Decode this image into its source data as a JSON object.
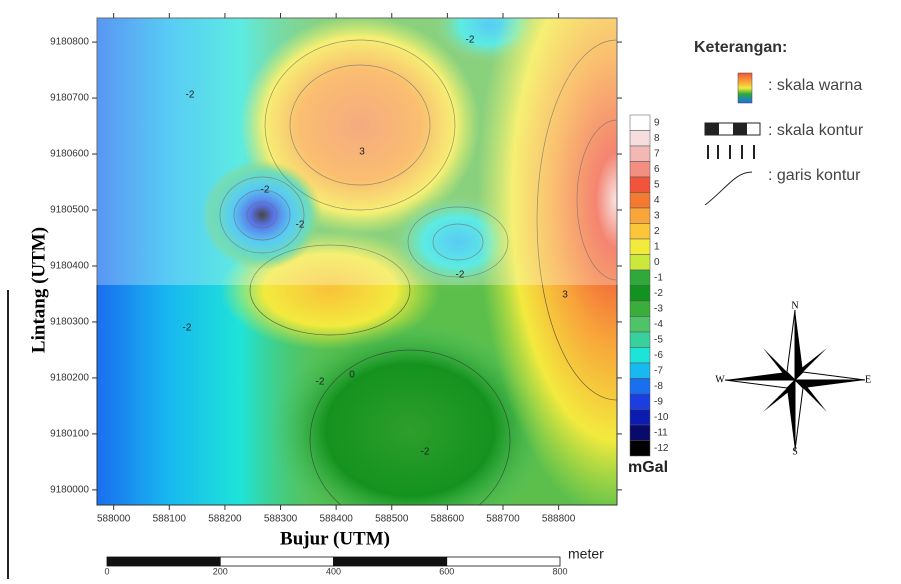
{
  "map": {
    "x_label": "Bujur (UTM)",
    "y_label": "Lintang (UTM)",
    "xlim": [
      587970,
      588905
    ],
    "ylim": [
      9179973,
      9180843
    ],
    "xticks": [
      588000,
      588100,
      588200,
      588300,
      588400,
      588500,
      588600,
      588700,
      588800
    ],
    "yticks": [
      9180000,
      9180100,
      9180200,
      9180300,
      9180400,
      9180500,
      9180600,
      9180700,
      9180800
    ],
    "contour_labels": [
      -2,
      -2,
      3,
      -2,
      -2,
      -2,
      3,
      -2,
      -2,
      0,
      -2
    ]
  },
  "colorbar": {
    "unit": "mGal",
    "levels": [
      {
        "value": 9,
        "color": "#ffffff"
      },
      {
        "value": 8,
        "color": "#f6dede"
      },
      {
        "value": 7,
        "color": "#f2b9b4"
      },
      {
        "value": 6,
        "color": "#f28f80"
      },
      {
        "value": 5,
        "color": "#f0553a"
      },
      {
        "value": 4,
        "color": "#f47a32"
      },
      {
        "value": 3,
        "color": "#f8a53a"
      },
      {
        "value": 2,
        "color": "#fbc63a"
      },
      {
        "value": 1,
        "color": "#f3ea3e"
      },
      {
        "value": 0,
        "color": "#cde83c"
      },
      {
        "value": -1,
        "color": "#2faa3a"
      },
      {
        "value": -2,
        "color": "#14921f"
      },
      {
        "value": -3,
        "color": "#3aae3a"
      },
      {
        "value": -4,
        "color": "#4ec46a"
      },
      {
        "value": -5,
        "color": "#38d09c"
      },
      {
        "value": -6,
        "color": "#1ee4d8"
      },
      {
        "value": -7,
        "color": "#18b8f0"
      },
      {
        "value": -8,
        "color": "#1a6ef0"
      },
      {
        "value": -9,
        "color": "#1a3ee0"
      },
      {
        "value": -10,
        "color": "#0c1cb0"
      },
      {
        "value": -11,
        "color": "#0a0a6a"
      },
      {
        "value": -12,
        "color": "#000000"
      }
    ]
  },
  "legend": {
    "title": "Keterangan:",
    "items": [
      ": skala warna",
      ": skala kontur",
      ": garis kontur"
    ]
  },
  "compass": {
    "n": "N",
    "e": "E",
    "s": "S",
    "w": "W"
  },
  "scale_bar": {
    "ticks": [
      0,
      200,
      400,
      600,
      800
    ],
    "unit": "meter"
  }
}
